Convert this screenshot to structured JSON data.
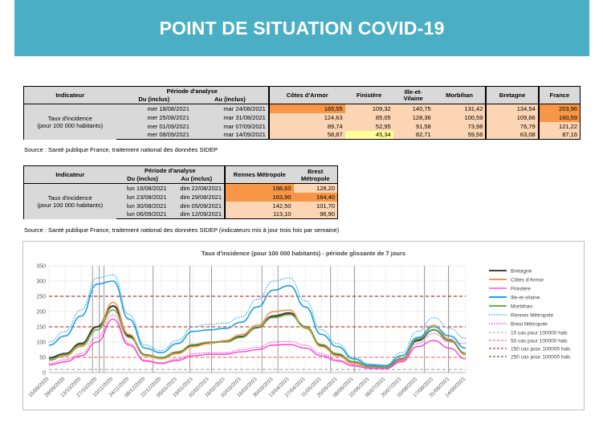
{
  "banner": {
    "title": "POINT DE SITUATION COVID-19"
  },
  "table1": {
    "h_indicateur": "Indicateur",
    "h_periode": "Période d'analyse",
    "h_du": "Du (inclus)",
    "h_au": "Au (inclus)",
    "cols": [
      "Côtes d'Armor",
      "Finistère",
      "Ille-et-Vilaine",
      "Morbihan",
      "Bretagne",
      "France"
    ],
    "label1": "Taux d'incidence",
    "label2": "(pour 100 000 habitants)",
    "rows": [
      {
        "du": "mer 18/08/2021",
        "au": "mar 24/08/2021",
        "v": [
          "165,55",
          "109,32",
          "140,75",
          "131,42",
          "134,54",
          "203,96"
        ]
      },
      {
        "du": "mer 25/08/2021",
        "au": "mar 31/08/2021",
        "v": [
          "124,63",
          "85,05",
          "128,36",
          "100,59",
          "109,66",
          "160,59"
        ]
      },
      {
        "du": "mer 01/09/2021",
        "au": "mar 07/09/2021",
        "v": [
          "89,74",
          "52,95",
          "91,58",
          "73,98",
          "76,79",
          "121,22"
        ]
      },
      {
        "du": "mer 08/09/2021",
        "au": "mar 14/09/2021",
        "v": [
          "58,87",
          "45,34",
          "82,71",
          "59,56",
          "63,08",
          "87,16"
        ]
      }
    ],
    "source": "Source  : Santé publique France, traitement national des données SIDEP"
  },
  "table2": {
    "h_indicateur": "Indicateur",
    "h_periode": "Période d'analyse",
    "h_du": "Du (inclus)",
    "h_au": "Au (inclus)",
    "cols": [
      "Rennes Métropole",
      "Brest Métropole"
    ],
    "label1": "Taux d'incidence",
    "label2": "(pour 100 000 habitants)",
    "rows": [
      {
        "du": "lun 16/08/2021",
        "au": "dim 22/08/2021",
        "v": [
          "198,60",
          "128,20"
        ]
      },
      {
        "du": "lun 23/08/2021",
        "au": "dim 29/08/2021",
        "v": [
          "163,90",
          "164,40"
        ]
      },
      {
        "du": "lun 30/08/2021",
        "au": "dim 05/09/2021",
        "v": [
          "142,50",
          "101,70"
        ]
      },
      {
        "du": "lun 06/09/2021",
        "au": "dim 12/09/2021",
        "v": [
          "113,10",
          "96,90"
        ]
      }
    ],
    "source": "Source  : Santé publique France, traitement national des données SIDEP (indicateurs mis à jour trois fois par semaine)"
  },
  "chart_data": {
    "type": "line",
    "title": "Taux d'incidence (pour 100 000 habitants) - période glissante de 7 jours",
    "ylim": [
      0,
      350
    ],
    "yticks": [
      0,
      50,
      100,
      150,
      200,
      250,
      300,
      350
    ],
    "x": [
      "15/09/2020",
      "29/09/2020",
      "13/10/2020",
      "27/10/2020",
      "10/11/2020",
      "24/11/2020",
      "08/12/2020",
      "22/12/2020",
      "05/01/2021",
      "19/01/2021",
      "02/02/2021",
      "16/02/2021",
      "02/03/2021",
      "16/03/2021",
      "30/03/2021",
      "13/04/2021",
      "27/04/2021",
      "11/05/2021",
      "25/05/2021",
      "08/06/2021",
      "22/06/2021",
      "06/07/2021",
      "20/07/2021",
      "03/08/2021",
      "17/08/2021",
      "31/08/2021",
      "14/09/2021"
    ],
    "grid": true,
    "legend_position": "right",
    "vlines_x": [
      "23/10/2020",
      "29/10/2020",
      "02/11/2020",
      "15/12/2020",
      "16/01/2021",
      "04/02/2021",
      "20/03/2021",
      "03/04/2021",
      "19/05/2021",
      "09/06/2021",
      "09/08/2021",
      "30/08/2021"
    ],
    "thresholds": [
      {
        "name": "10 cas pour 100000 hab.",
        "value": 10,
        "color": "#a6a6a6"
      },
      {
        "name": "50 cas pour 100000 hab.",
        "value": 50,
        "color": "#ff5050"
      },
      {
        "name": "150 cas pour 100000 hab.",
        "value": 150,
        "color": "#e00000"
      },
      {
        "name": "250 cas pour 100000 hab.",
        "value": 250,
        "color": "#b00000"
      }
    ],
    "series": [
      {
        "name": "Bretagne",
        "color": "#404040",
        "dash": "",
        "width": 2.2,
        "values": [
          48,
          62,
          95,
          150,
          218,
          120,
          58,
          48,
          65,
          90,
          98,
          102,
          118,
          148,
          185,
          195,
          150,
          90,
          60,
          35,
          20,
          18,
          45,
          105,
          140,
          105,
          62
        ]
      },
      {
        "name": "Côtes d'Armor",
        "color": "#f79646",
        "dash": "",
        "width": 1.6,
        "values": [
          40,
          55,
          85,
          140,
          230,
          125,
          55,
          45,
          62,
          85,
          95,
          105,
          125,
          155,
          200,
          205,
          145,
          85,
          55,
          30,
          18,
          16,
          40,
          110,
          155,
          110,
          58
        ]
      },
      {
        "name": "Finistère",
        "color": "#ff33cc",
        "dash": "",
        "width": 1.3,
        "values": [
          25,
          35,
          55,
          100,
          175,
          90,
          38,
          30,
          40,
          55,
          60,
          60,
          68,
          75,
          90,
          92,
          80,
          55,
          38,
          22,
          14,
          13,
          35,
          85,
          105,
          80,
          45
        ]
      },
      {
        "name": "Ille-et-vilaine",
        "color": "#1ba1e2",
        "dash": "",
        "width": 1.6,
        "values": [
          90,
          120,
          185,
          290,
          300,
          175,
          80,
          65,
          95,
          135,
          140,
          145,
          165,
          215,
          270,
          285,
          215,
          125,
          85,
          45,
          25,
          22,
          55,
          115,
          150,
          120,
          80
        ]
      },
      {
        "name": "Morbihan",
        "color": "#70ad47",
        "dash": "",
        "width": 1.6,
        "values": [
          42,
          58,
          90,
          140,
          205,
          115,
          58,
          50,
          68,
          92,
          100,
          100,
          115,
          150,
          180,
          190,
          150,
          92,
          62,
          35,
          20,
          18,
          45,
          110,
          140,
          105,
          62
        ]
      },
      {
        "name": "Rennes Métropole",
        "color": "#1ba1e2",
        "dash": "1.5,1.5",
        "width": 1.1,
        "values": [
          100,
          135,
          205,
          310,
          320,
          190,
          90,
          72,
          105,
          150,
          158,
          162,
          182,
          240,
          300,
          310,
          235,
          140,
          95,
          50,
          28,
          25,
          65,
          135,
          180,
          145,
          112
        ]
      },
      {
        "name": "Brest Métropole",
        "color": "#ff33cc",
        "dash": "1.5,1.5",
        "width": 1.1,
        "values": [
          30,
          42,
          62,
          115,
          190,
          95,
          40,
          32,
          45,
          62,
          65,
          65,
          75,
          82,
          100,
          102,
          90,
          62,
          42,
          25,
          15,
          14,
          40,
          95,
          128,
          100,
          95
        ]
      }
    ]
  }
}
